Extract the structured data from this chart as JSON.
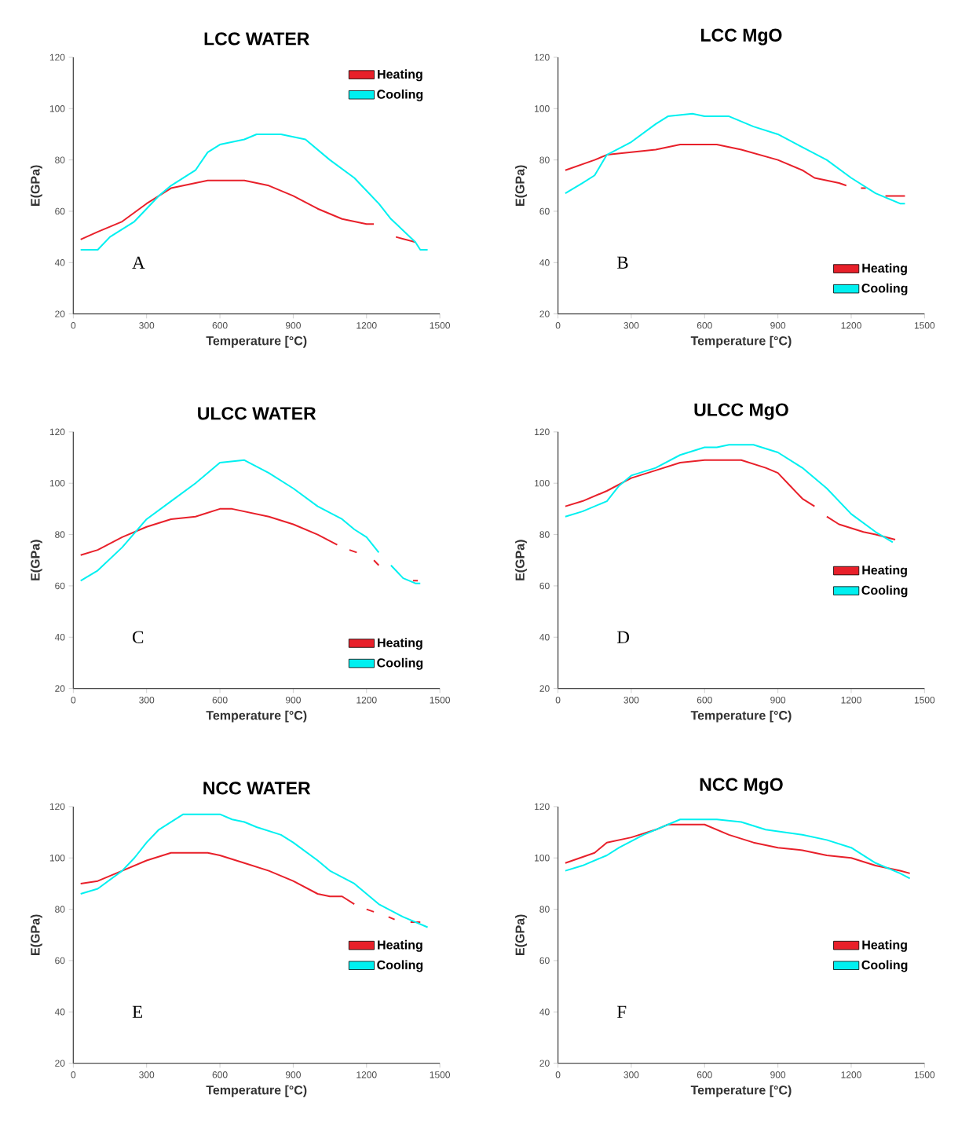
{
  "chart_data": [
    {
      "type": "line",
      "title": "LCC WATER",
      "xlabel": "Temperature [°C)",
      "ylabel": "E(GPa)",
      "annotations": [
        "A"
      ],
      "xlim": [
        0,
        1500
      ],
      "ylim": [
        20,
        120
      ],
      "xticks": [
        0,
        300,
        600,
        900,
        1200,
        1500
      ],
      "yticks": [
        20,
        40,
        60,
        80,
        100,
        120
      ],
      "legend": "top right",
      "series": [
        {
          "name": "Heating",
          "color": "#e8202a",
          "x": [
            30,
            100,
            200,
            300,
            400,
            500,
            550,
            700,
            800,
            900,
            1000,
            1100,
            1200,
            1230,
            1275,
            1320,
            1400
          ],
          "values": [
            49,
            52,
            56,
            63,
            69,
            71,
            72,
            72,
            70,
            66,
            61,
            57,
            55,
            55,
            null,
            50,
            48
          ]
        },
        {
          "name": "Cooling",
          "color": "#00f0f0",
          "x": [
            30,
            100,
            150,
            200,
            250,
            300,
            350,
            400,
            500,
            550,
            600,
            700,
            750,
            850,
            950,
            1050,
            1150,
            1250,
            1300,
            1400,
            1420,
            1450
          ],
          "values": [
            45,
            45,
            50,
            53,
            56,
            61,
            66,
            70,
            76,
            83,
            86,
            88,
            90,
            90,
            88,
            80,
            73,
            63,
            57,
            48,
            45,
            45
          ]
        }
      ]
    },
    {
      "type": "line",
      "title": "LCC MgO",
      "xlabel": "Temperature [°C)",
      "ylabel": "E(GPa)",
      "annotations": [
        "B"
      ],
      "xlim": [
        0,
        1500
      ],
      "ylim": [
        20,
        120
      ],
      "xticks": [
        0,
        300,
        600,
        900,
        1200,
        1500
      ],
      "yticks": [
        20,
        40,
        60,
        80,
        100,
        120
      ],
      "legend": "bottom right",
      "series": [
        {
          "name": "Heating",
          "color": "#e8202a",
          "x": [
            30,
            150,
            200,
            300,
            400,
            500,
            650,
            750,
            900,
            1000,
            1050,
            1150,
            1180,
            1210,
            1240,
            1260,
            1300,
            1340,
            1420
          ],
          "values": [
            76,
            80,
            82,
            83,
            84,
            86,
            86,
            84,
            80,
            76,
            73,
            71,
            70,
            null,
            69,
            69,
            null,
            66,
            66
          ]
        },
        {
          "name": "Cooling",
          "color": "#00f0f0",
          "x": [
            30,
            100,
            150,
            200,
            300,
            400,
            450,
            550,
            600,
            700,
            800,
            900,
            1000,
            1100,
            1200,
            1300,
            1400,
            1420
          ],
          "values": [
            67,
            71,
            74,
            82,
            87,
            94,
            97,
            98,
            97,
            97,
            93,
            90,
            85,
            80,
            73,
            67,
            63,
            63
          ]
        }
      ]
    },
    {
      "type": "line",
      "title": "ULCC WATER",
      "xlabel": "Temperature [°C)",
      "ylabel": "E(GPa)",
      "annotations": [
        "C"
      ],
      "xlim": [
        0,
        1500
      ],
      "ylim": [
        20,
        120
      ],
      "xticks": [
        0,
        300,
        600,
        900,
        1200,
        1500
      ],
      "yticks": [
        20,
        40,
        60,
        80,
        100,
        120
      ],
      "legend": "bottom right",
      "series": [
        {
          "name": "Heating",
          "color": "#e8202a",
          "x": [
            30,
            100,
            200,
            300,
            400,
            500,
            600,
            650,
            800,
            900,
            1000,
            1080,
            1105,
            1130,
            1160,
            1200,
            1230,
            1250,
            1320,
            1390,
            1410
          ],
          "values": [
            72,
            74,
            79,
            83,
            86,
            87,
            90,
            90,
            87,
            84,
            80,
            76,
            null,
            74,
            73,
            null,
            70,
            68,
            null,
            62,
            62
          ]
        },
        {
          "name": "Cooling",
          "color": "#00f0f0",
          "x": [
            30,
            100,
            200,
            300,
            400,
            500,
            600,
            700,
            800,
            900,
            1000,
            1100,
            1150,
            1200,
            1250,
            1275,
            1300,
            1350,
            1400,
            1420
          ],
          "values": [
            62,
            66,
            75,
            86,
            93,
            100,
            108,
            109,
            104,
            98,
            91,
            86,
            82,
            79,
            73,
            null,
            68,
            63,
            61,
            61
          ]
        }
      ]
    },
    {
      "type": "line",
      "title": "ULCC MgO",
      "xlabel": "Temperature [°C)",
      "ylabel": "E(GPa)",
      "annotations": [
        "D"
      ],
      "xlim": [
        0,
        1500
      ],
      "ylim": [
        20,
        120
      ],
      "xticks": [
        0,
        300,
        600,
        900,
        1200,
        1500
      ],
      "yticks": [
        20,
        40,
        60,
        80,
        100,
        120
      ],
      "legend": "right",
      "series": [
        {
          "name": "Heating",
          "color": "#e8202a",
          "x": [
            30,
            100,
            200,
            300,
            400,
            500,
            600,
            750,
            850,
            900,
            950,
            1000,
            1050,
            1075,
            1100,
            1150,
            1250,
            1300,
            1380
          ],
          "values": [
            91,
            93,
            97,
            102,
            105,
            108,
            109,
            109,
            106,
            104,
            99,
            94,
            91,
            null,
            87,
            84,
            81,
            80,
            78
          ]
        },
        {
          "name": "Cooling",
          "color": "#00f0f0",
          "x": [
            30,
            100,
            200,
            250,
            300,
            400,
            500,
            600,
            650,
            700,
            800,
            900,
            1000,
            1100,
            1200,
            1300,
            1370
          ],
          "values": [
            87,
            89,
            93,
            99,
            103,
            106,
            111,
            114,
            114,
            115,
            115,
            112,
            106,
            98,
            88,
            81,
            77
          ]
        }
      ]
    },
    {
      "type": "line",
      "title": "NCC WATER",
      "xlabel": "Temperature [°C)",
      "ylabel": "E(GPa)",
      "annotations": [
        "E"
      ],
      "xlim": [
        0,
        1500
      ],
      "ylim": [
        20,
        120
      ],
      "xticks": [
        0,
        300,
        600,
        900,
        1200,
        1500
      ],
      "yticks": [
        20,
        40,
        60,
        80,
        100,
        120
      ],
      "legend": "right",
      "series": [
        {
          "name": "Heating",
          "color": "#e8202a",
          "x": [
            30,
            100,
            200,
            300,
            400,
            550,
            600,
            700,
            800,
            900,
            1000,
            1050,
            1100,
            1150,
            1175,
            1200,
            1230,
            1265,
            1290,
            1315,
            1345,
            1380,
            1420
          ],
          "values": [
            90,
            91,
            95,
            99,
            102,
            102,
            101,
            98,
            95,
            91,
            86,
            85,
            85,
            82,
            null,
            80,
            79,
            null,
            77,
            76,
            null,
            75,
            75
          ]
        },
        {
          "name": "Cooling",
          "color": "#00f0f0",
          "x": [
            30,
            100,
            200,
            250,
            300,
            350,
            450,
            600,
            650,
            700,
            750,
            850,
            900,
            1000,
            1050,
            1150,
            1250,
            1350,
            1450
          ],
          "values": [
            86,
            88,
            95,
            100,
            106,
            111,
            117,
            117,
            115,
            114,
            112,
            109,
            106,
            99,
            95,
            90,
            82,
            77,
            73
          ]
        }
      ]
    },
    {
      "type": "line",
      "title": "NCC MgO",
      "xlabel": "Temperature [°C)",
      "ylabel": "E(GPa)",
      "annotations": [
        "F"
      ],
      "xlim": [
        0,
        1500
      ],
      "ylim": [
        20,
        120
      ],
      "xticks": [
        0,
        300,
        600,
        900,
        1200,
        1500
      ],
      "yticks": [
        20,
        40,
        60,
        80,
        100,
        120
      ],
      "legend": "right",
      "series": [
        {
          "name": "Heating",
          "color": "#e8202a",
          "x": [
            30,
            150,
            200,
            300,
            400,
            450,
            600,
            700,
            800,
            900,
            1000,
            1100,
            1200,
            1300,
            1400,
            1440
          ],
          "values": [
            98,
            102,
            106,
            108,
            111,
            113,
            113,
            109,
            106,
            104,
            103,
            101,
            100,
            97,
            95,
            94
          ]
        },
        {
          "name": "Cooling",
          "color": "#00f0f0",
          "x": [
            30,
            100,
            200,
            250,
            350,
            450,
            500,
            650,
            750,
            850,
            1000,
            1100,
            1200,
            1300,
            1400,
            1440
          ],
          "values": [
            95,
            97,
            101,
            104,
            109,
            113,
            115,
            115,
            114,
            111,
            109,
            107,
            104,
            98,
            94,
            92
          ]
        }
      ]
    }
  ]
}
